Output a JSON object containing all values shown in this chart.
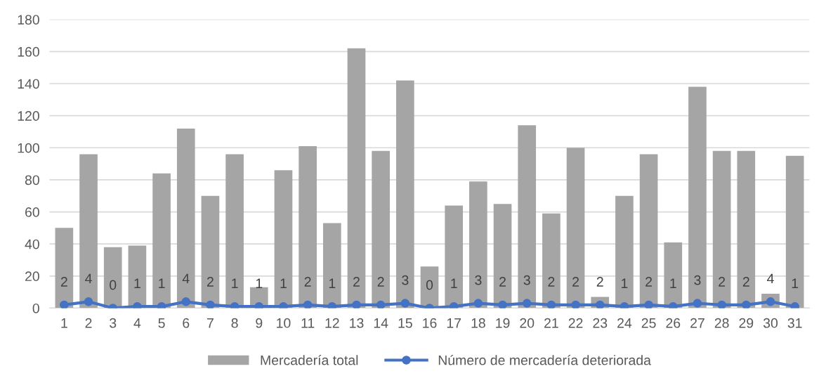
{
  "chart_data": {
    "type": "bar",
    "categories": [
      "1",
      "2",
      "3",
      "4",
      "5",
      "6",
      "7",
      "8",
      "9",
      "10",
      "11",
      "12",
      "13",
      "14",
      "15",
      "16",
      "17",
      "18",
      "19",
      "20",
      "21",
      "22",
      "23",
      "24",
      "25",
      "26",
      "27",
      "28",
      "29",
      "30",
      "31"
    ],
    "series": [
      {
        "name": "Mercadería total",
        "color": "#a5a5a5",
        "values": [
          50,
          96,
          38,
          39,
          84,
          112,
          70,
          96,
          13,
          86,
          101,
          53,
          162,
          98,
          142,
          26,
          64,
          79,
          65,
          114,
          59,
          100,
          7,
          70,
          96,
          41,
          138,
          98,
          98,
          9,
          95
        ]
      },
      {
        "name": "Número de mercadería deteriorada",
        "type": "line",
        "color": "#4472c4",
        "marker": "circle",
        "data_labels": true,
        "values": [
          2,
          4,
          0,
          1,
          1,
          4,
          2,
          1,
          1,
          1,
          2,
          1,
          2,
          2,
          3,
          0,
          1,
          3,
          2,
          3,
          2,
          2,
          2,
          1,
          2,
          1,
          3,
          2,
          2,
          4,
          1
        ]
      }
    ],
    "ylim": [
      0,
      180
    ],
    "yticks": [
      0,
      20,
      40,
      60,
      80,
      100,
      120,
      140,
      160,
      180
    ],
    "grid": "y",
    "legend": "bottom"
  }
}
